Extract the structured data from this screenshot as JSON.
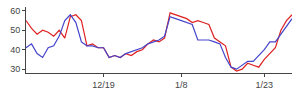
{
  "chart_data": {
    "type": "line",
    "categories": [
      null,
      null,
      null,
      null,
      null,
      null,
      null,
      null,
      null,
      null,
      null,
      null,
      null,
      null,
      "12/19",
      null,
      null,
      null,
      null,
      null,
      null,
      null,
      null,
      null,
      null,
      null,
      null,
      null,
      "1/8",
      null,
      null,
      null,
      null,
      null,
      null,
      null,
      null,
      null,
      null,
      null,
      null,
      null,
      null,
      "1/23",
      null,
      null,
      null,
      null,
      null
    ],
    "series": [
      {
        "color": "#dd2222",
        "values": [
          55,
          51,
          48,
          50,
          49,
          47,
          50,
          46,
          57,
          58,
          55,
          42,
          43,
          41,
          41,
          36,
          37,
          36,
          38,
          37,
          39,
          40,
          43,
          45,
          44,
          46,
          59,
          58,
          57,
          56,
          54,
          55,
          54,
          53,
          46,
          44,
          42,
          31,
          29,
          30,
          33,
          32,
          31,
          35,
          38,
          41,
          50,
          55,
          58
        ]
      },
      {
        "color": "#4444cc",
        "values": [
          41,
          43,
          38,
          36,
          41,
          42,
          47,
          55,
          58,
          54,
          44,
          42,
          42,
          41,
          41,
          36,
          37,
          36,
          38,
          39,
          40,
          41,
          43,
          44,
          45,
          47,
          57,
          56,
          55,
          54,
          53,
          45,
          45,
          45,
          44,
          43,
          36,
          31,
          30,
          32,
          34,
          34,
          37,
          40,
          44,
          44,
          48,
          52,
          56
        ]
      }
    ],
    "ylim": [
      28,
      62
    ],
    "yticks": [
      30,
      40,
      50,
      60
    ],
    "grid": false
  }
}
